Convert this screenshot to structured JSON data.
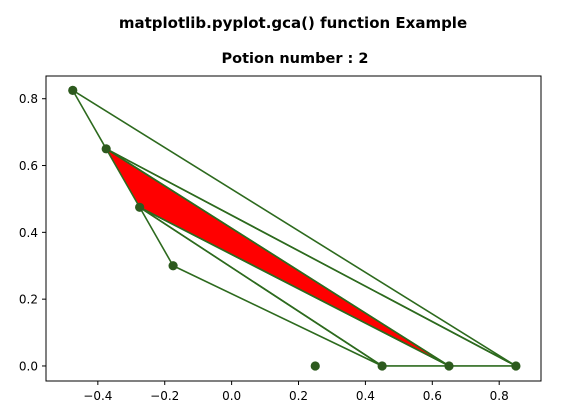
{
  "chart_data": {
    "type": "scatter",
    "suptitle": "matplotlib.pyplot.gca() function Example",
    "title": "Potion number : 2",
    "xlabel": "",
    "ylabel": "",
    "xlim": [
      -0.555,
      0.925
    ],
    "ylim": [
      -0.045,
      0.868
    ],
    "xticks": [
      -0.4,
      -0.2,
      0.0,
      0.2,
      0.4,
      0.6,
      0.8
    ],
    "xtick_labels": [
      "−0.4",
      "−0.2",
      "0.0",
      "0.2",
      "0.4",
      "0.6",
      "0.8"
    ],
    "yticks": [
      0.0,
      0.2,
      0.4,
      0.6,
      0.8
    ],
    "ytick_labels": [
      "0.0",
      "0.2",
      "0.4",
      "0.6",
      "0.8"
    ],
    "grid": false,
    "legend": "none",
    "points": [
      {
        "x": -0.475,
        "y": 0.825
      },
      {
        "x": -0.375,
        "y": 0.65
      },
      {
        "x": -0.275,
        "y": 0.475
      },
      {
        "x": -0.175,
        "y": 0.3
      },
      {
        "x": 0.25,
        "y": 0.0
      },
      {
        "x": 0.45,
        "y": 0.0
      },
      {
        "x": 0.65,
        "y": 0.0
      },
      {
        "x": 0.85,
        "y": 0.0
      }
    ],
    "triangles": [
      {
        "vertices": [
          [
            -0.475,
            0.825
          ],
          [
            -0.375,
            0.65
          ],
          [
            0.85,
            0.0
          ]
        ],
        "fill": "none"
      },
      {
        "vertices": [
          [
            -0.375,
            0.65
          ],
          [
            -0.275,
            0.475
          ],
          [
            0.65,
            0.0
          ]
        ],
        "fill": "#ff0000"
      },
      {
        "vertices": [
          [
            -0.375,
            0.65
          ],
          [
            0.65,
            0.0
          ],
          [
            0.85,
            0.0
          ]
        ],
        "fill": "none"
      },
      {
        "vertices": [
          [
            -0.275,
            0.475
          ],
          [
            0.45,
            0.0
          ],
          [
            0.65,
            0.0
          ]
        ],
        "fill": "none"
      },
      {
        "vertices": [
          [
            -0.275,
            0.475
          ],
          [
            -0.175,
            0.3
          ],
          [
            0.45,
            0.0
          ]
        ],
        "fill": "none"
      }
    ],
    "colors": {
      "line": "#2d6a1e",
      "marker": "#2d5a1e",
      "highlight_fill": "#ff0000",
      "axes": "#000000",
      "background": "#ffffff"
    }
  }
}
